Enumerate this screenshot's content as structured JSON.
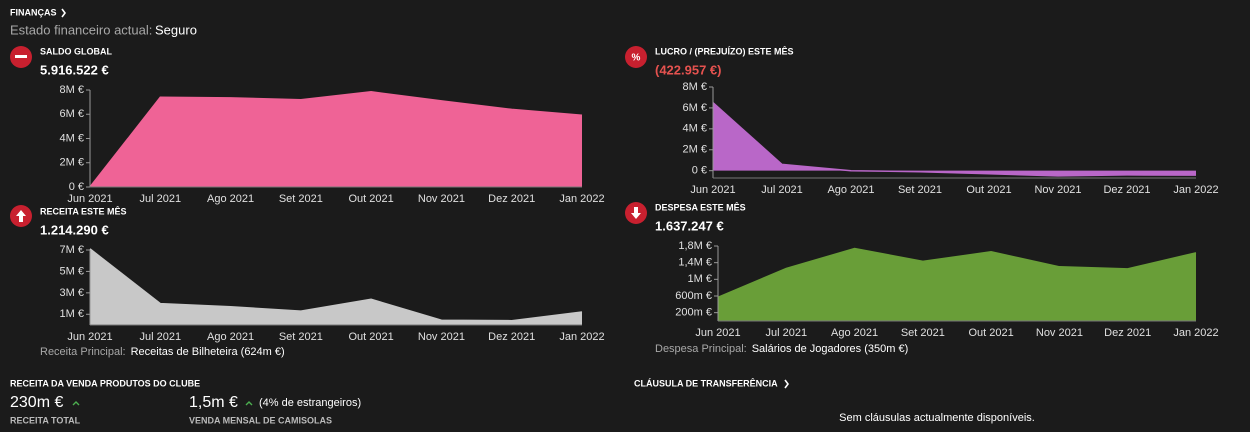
{
  "header": {
    "title": "FINANÇAS",
    "status_label": "Estado financeiro actual:",
    "status": "Seguro"
  },
  "chart_data": [
    {
      "type": "area",
      "title": "SALDO GLOBAL",
      "headline": "5.916.522 €",
      "color": "#ef6396",
      "categories": [
        "Jun 2021",
        "Jul 2021",
        "Ago 2021",
        "Set 2021",
        "Out 2021",
        "Nov 2021",
        "Dez 2021",
        "Jan 2022"
      ],
      "values": [
        0,
        7400000,
        7350000,
        7200000,
        7850000,
        7100000,
        6400000,
        5916522
      ],
      "ylim": [
        0,
        8000000
      ],
      "yticks": [
        {
          "value": 0,
          "label": "0 €"
        },
        {
          "value": 2000000,
          "label": "2M €"
        },
        {
          "value": 4000000,
          "label": "4M €"
        },
        {
          "value": 6000000,
          "label": "6M €"
        },
        {
          "value": 8000000,
          "label": "8M €"
        }
      ]
    },
    {
      "type": "area",
      "title": "LUCRO / (PREJUÍZO) ESTE MÊS",
      "headline": "(422.957 €)",
      "headline_color": "#e5524f",
      "color": "#b967c8",
      "categories": [
        "Jun 2021",
        "Jul 2021",
        "Ago 2021",
        "Set 2021",
        "Out 2021",
        "Nov 2021",
        "Dez 2021",
        "Jan 2022"
      ],
      "values": [
        6500000,
        600000,
        0,
        -100000,
        -300000,
        -500000,
        -400000,
        -422957
      ],
      "ylim": [
        -700000,
        8000000
      ],
      "yticks": [
        {
          "value": 0,
          "label": "0 €"
        },
        {
          "value": 2000000,
          "label": "2M €"
        },
        {
          "value": 4000000,
          "label": "4M €"
        },
        {
          "value": 6000000,
          "label": "6M €"
        },
        {
          "value": 8000000,
          "label": "8M €"
        }
      ]
    },
    {
      "type": "area",
      "title": "RECEITA ESTE MÊS",
      "headline": "1.214.290 €",
      "color": "#c8c8c8",
      "categories": [
        "Jun 2021",
        "Jul 2021",
        "Ago 2021",
        "Set 2021",
        "Out 2021",
        "Nov 2021",
        "Dez 2021",
        "Jan 2022"
      ],
      "values": [
        7100000,
        2000000,
        1700000,
        1300000,
        2400000,
        450000,
        400000,
        1214290
      ],
      "ylim": [
        0,
        7000000
      ],
      "yticks": [
        {
          "value": 1000000,
          "label": "1M €"
        },
        {
          "value": 3000000,
          "label": "3M €"
        },
        {
          "value": 5000000,
          "label": "5M €"
        },
        {
          "value": 7000000,
          "label": "7M €"
        }
      ],
      "note_label": "Receita Principal:",
      "note": "Receitas de Bilheteira (624m €)"
    },
    {
      "type": "area",
      "title": "DESPESA ESTE MÊS",
      "headline": "1.637.247 €",
      "color": "#699e38",
      "categories": [
        "Jun 2021",
        "Jul 2021",
        "Ago 2021",
        "Set 2021",
        "Out 2021",
        "Nov 2021",
        "Dez 2021",
        "Jan 2022"
      ],
      "values": [
        570000,
        1260000,
        1740000,
        1430000,
        1660000,
        1300000,
        1250000,
        1637247
      ],
      "ylim": [
        0,
        1800000
      ],
      "yticks": [
        {
          "value": 200000,
          "label": "200m €"
        },
        {
          "value": 600000,
          "label": "600m €"
        },
        {
          "value": 1000000,
          "label": "1M €"
        },
        {
          "value": 1400000,
          "label": "1,4M €"
        },
        {
          "value": 1800000,
          "label": "1,8M €"
        }
      ],
      "note_label": "Despesa Principal:",
      "note": "Salários de Jogadores (350m €)"
    }
  ],
  "merchandise": {
    "title": "RECEITA DA VENDA PRODUTOS DO CLUBE",
    "total": "230m €",
    "total_label": "RECEITA TOTAL",
    "shirts": "1,5m €",
    "shirts_note": "(4% de estrangeiros)",
    "shirts_label": "VENDA MENSAL DE CAMISOLAS"
  },
  "transfer_clause": {
    "title": "CLÁUSULA DE TRANSFERÊNCIA",
    "message": "Sem cláusulas actualmente disponíveis."
  }
}
